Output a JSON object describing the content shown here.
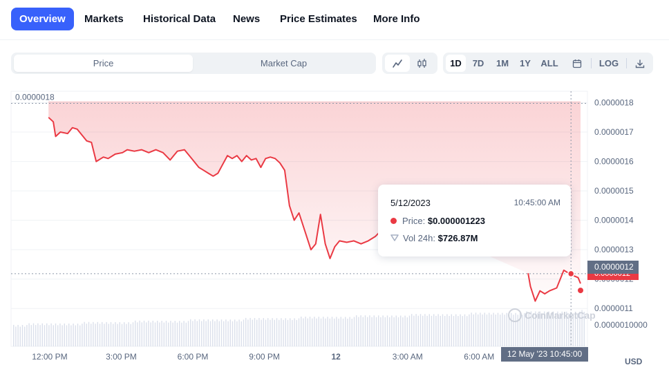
{
  "nav": {
    "tabs": [
      {
        "label": "Overview",
        "active": true
      },
      {
        "label": "Markets"
      },
      {
        "label": "Historical Data"
      },
      {
        "label": "News"
      },
      {
        "label": "Price Estimates"
      },
      {
        "label": "More Info"
      }
    ]
  },
  "controls": {
    "metric": [
      {
        "label": "Price",
        "active": true
      },
      {
        "label": "Market Cap"
      }
    ],
    "chart_types": [
      {
        "icon": "line-chart-icon",
        "active": true
      },
      {
        "icon": "candlestick-icon"
      }
    ],
    "ranges": [
      {
        "label": "1D",
        "active": true
      },
      {
        "label": "7D"
      },
      {
        "label": "1M"
      },
      {
        "label": "1Y"
      },
      {
        "label": "ALL"
      }
    ],
    "calendar_icon": "calendar-icon",
    "log_label": "LOG",
    "download_icon": "download-icon"
  },
  "tooltip": {
    "date": "5/12/2023",
    "time": "10:45:00 AM",
    "price_label": "Price:",
    "price_value": "$0.000001223",
    "vol_label": "Vol 24h:",
    "vol_value": "$726.87M"
  },
  "crosshair": {
    "price_tag": "0.0000012",
    "price_tag_under": "0.0000012",
    "date_tag": "12 May '23   10:45:00"
  },
  "high_label": "0.0000018",
  "currency": "USD",
  "watermark": "CoinMarketCap",
  "colors": {
    "accent": "#3861fb",
    "down": "#ea3943",
    "muted": "#58667e"
  },
  "chart_data": {
    "type": "line",
    "title": "",
    "y_ticks": [
      "0.0000018",
      "0.0000017",
      "0.0000016",
      "0.0000015",
      "0.0000014",
      "0.0000013",
      "0.0000012",
      "0.0000011"
    ],
    "y_tick_values": [
      1.8e-06,
      1.7e-06,
      1.6e-06,
      1.5e-06,
      1.4e-06,
      1.3e-06,
      1.2e-06,
      1.1e-06
    ],
    "volume_axis_label": "0.0000010000",
    "ylim": [
      1.07e-06,
      1.82e-06
    ],
    "x_ticks": [
      "12:00 PM",
      "3:00 PM",
      "6:00 PM",
      "9:00 PM",
      "12",
      "3:00 AM",
      "6:00 AM"
    ],
    "x_tick_hours": [
      0.75,
      3.75,
      6.75,
      9.75,
      12.75,
      15.75,
      18.75
    ],
    "x_range_hours": [
      0,
      23
    ],
    "series": [
      {
        "x": [
          0.7,
          0.9,
          1.0,
          1.2,
          1.5,
          1.7,
          1.9,
          2.1,
          2.3,
          2.5,
          2.7,
          3.0,
          3.2,
          3.5,
          3.8,
          4.0,
          4.3,
          4.6,
          4.9,
          5.2,
          5.5,
          5.8,
          6.1,
          6.4,
          6.7,
          7.0,
          7.2,
          7.4,
          7.6,
          7.8,
          8.0,
          8.2,
          8.4,
          8.6,
          8.8,
          9.0,
          9.2,
          9.4,
          9.6,
          9.8,
          10.0,
          10.2,
          10.4,
          10.6,
          10.8,
          11.0,
          11.2,
          11.5,
          11.7,
          11.9,
          12.1,
          12.3,
          12.5,
          12.7,
          12.9,
          13.2,
          13.5,
          13.8,
          14.1,
          14.4,
          14.7,
          15.0,
          15.3,
          15.6,
          15.9,
          16.2,
          16.3,
          20.8,
          20.9,
          21.1,
          21.3,
          21.5,
          21.7,
          22.0,
          22.3,
          22.6,
          22.9,
          23.0
        ],
        "y": [
          1.75e-06,
          1.735e-06,
          1.685e-06,
          1.7e-06,
          1.695e-06,
          1.715e-06,
          1.71e-06,
          1.69e-06,
          1.67e-06,
          1.665e-06,
          1.6e-06,
          1.615e-06,
          1.61e-06,
          1.625e-06,
          1.63e-06,
          1.64e-06,
          1.635e-06,
          1.64e-06,
          1.63e-06,
          1.64e-06,
          1.63e-06,
          1.605e-06,
          1.635e-06,
          1.64e-06,
          1.61e-06,
          1.58e-06,
          1.57e-06,
          1.56e-06,
          1.55e-06,
          1.56e-06,
          1.59e-06,
          1.62e-06,
          1.61e-06,
          1.62e-06,
          1.6e-06,
          1.62e-06,
          1.605e-06,
          1.61e-06,
          1.58e-06,
          1.61e-06,
          1.615e-06,
          1.61e-06,
          1.595e-06,
          1.57e-06,
          1.45e-06,
          1.4e-06,
          1.425e-06,
          1.35e-06,
          1.3e-06,
          1.32e-06,
          1.42e-06,
          1.32e-06,
          1.27e-06,
          1.31e-06,
          1.33e-06,
          1.325e-06,
          1.33e-06,
          1.32e-06,
          1.33e-06,
          1.345e-06,
          1.37e-06,
          1.38e-06,
          1.39e-06,
          1.385e-06,
          1.37e-06,
          1.38e-06,
          1.38e-06,
          1.22e-06,
          1.175e-06,
          1.125e-06,
          1.16e-06,
          1.15e-06,
          1.16e-06,
          1.17e-06,
          1.23e-06,
          1.215e-06,
          1.205e-06,
          1.185e-06
        ]
      }
    ]
  }
}
